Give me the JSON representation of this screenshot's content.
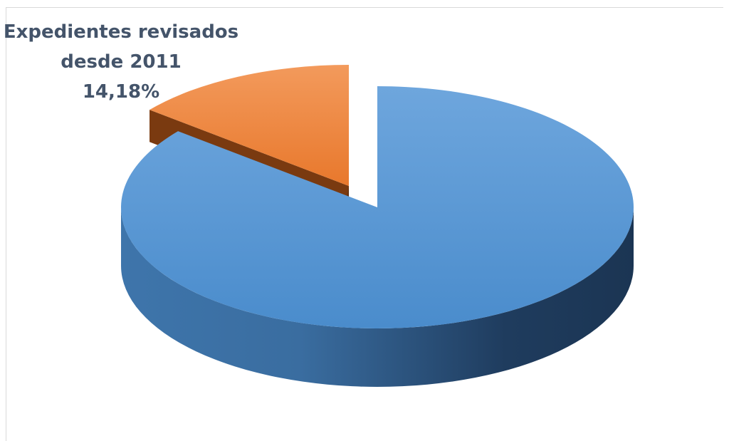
{
  "chart_data": {
    "type": "pie",
    "style": "3d-exploded",
    "title": "",
    "series": [
      {
        "name": "",
        "slices": [
          {
            "label": "Expedientes revisados desde 2011",
            "value": 14.18,
            "display": "14,18%",
            "color": "#ed7d31",
            "exploded": true
          },
          {
            "label": "",
            "value": 85.82,
            "display": "",
            "color": "#5b9bd5",
            "exploded": false
          }
        ]
      }
    ],
    "data_labels": [
      {
        "line1": "Expedientes revisados",
        "line2": "desde 2011",
        "line3": "14,18%"
      }
    ],
    "legend": "none"
  }
}
